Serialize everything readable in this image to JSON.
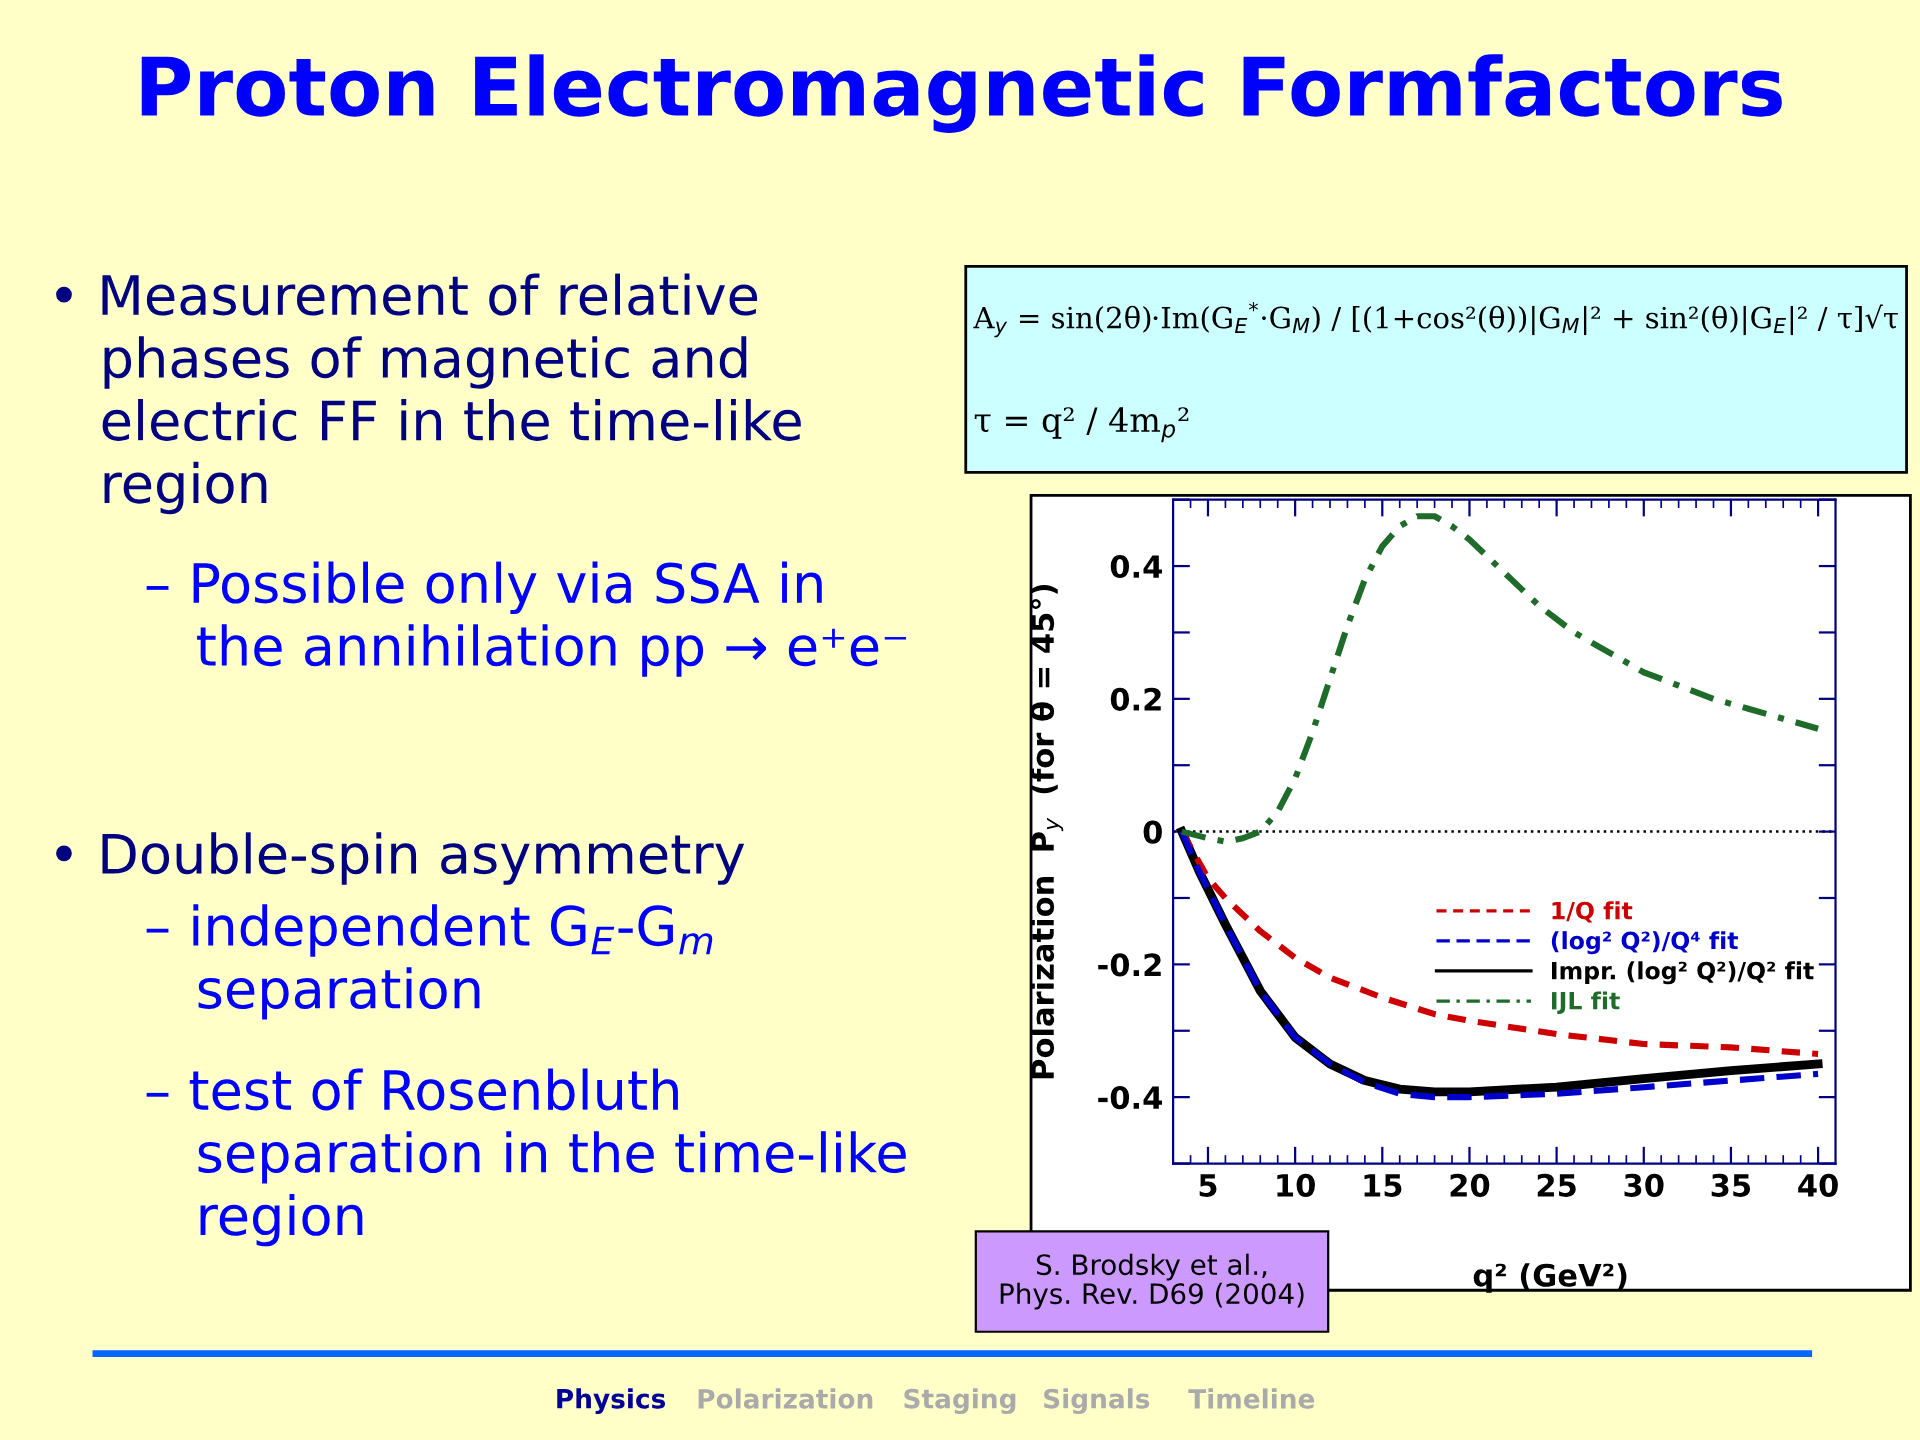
{
  "chart_data": {
    "type": "line",
    "title": "Proton Electromagnetic Formfactors",
    "xlabel": "q² (GeV²)",
    "ylabel": "Polarization  P$_{y}$  (for θ = 45°)",
    "xlim": [
      3,
      41
    ],
    "xticks": [
      5,
      10,
      15,
      20,
      25,
      30,
      35,
      40
    ],
    "ylim": [
      -0.5,
      0.5
    ],
    "yticks": [
      {
        "value": -0.5,
        "label": null
      },
      -0.4,
      {
        "value": -0.3,
        "label": null
      },
      -0.2,
      {
        "value": -0.1,
        "label": null
      },
      0,
      {
        "value": 0.1,
        "label": null
      },
      0.2,
      {
        "value": 0.3,
        "label": null
      },
      0.4,
      {
        "value": 0.5,
        "label": null
      }
    ],
    "grid": false,
    "legend": "right",
    "marker": "none",
    "ref_lines": [
      {
        "axis": "y",
        "value": 0,
        "label": null,
        "color": "#000000",
        "line_style": "dotted"
      }
    ],
    "series": [
      {
        "name": "1/Q fit",
        "color": "#cc0000",
        "line_style": "dashed",
        "x": [
          3.5,
          5,
          6,
          8,
          10,
          12,
          15,
          18,
          20,
          25,
          30,
          35,
          40
        ],
        "values": [
          0,
          -0.07,
          -0.1,
          -0.15,
          -0.19,
          -0.22,
          -0.25,
          -0.275,
          -0.285,
          -0.305,
          -0.32,
          -0.325,
          -0.335
        ]
      },
      {
        "name": "(log² Q²)/Q⁴ fit",
        "color": "#0000cc",
        "line_style": "dashed",
        "x": [
          3.5,
          4.5,
          6,
          8,
          10,
          12,
          14,
          16,
          18,
          20,
          25,
          30,
          35,
          40
        ],
        "values": [
          0,
          -0.06,
          -0.14,
          -0.24,
          -0.31,
          -0.35,
          -0.378,
          -0.395,
          -0.4,
          -0.4,
          -0.395,
          -0.385,
          -0.375,
          -0.365
        ]
      },
      {
        "name": "Impr. (log² Q²)/Q² fit",
        "color": "#000000",
        "line_style": "solid",
        "x": [
          3.5,
          4.5,
          6,
          8,
          10,
          12,
          14,
          16,
          18,
          20,
          25,
          30,
          35,
          40
        ],
        "values": [
          0,
          -0.06,
          -0.14,
          -0.24,
          -0.31,
          -0.35,
          -0.375,
          -0.388,
          -0.392,
          -0.392,
          -0.385,
          -0.372,
          -0.36,
          -0.35
        ]
      },
      {
        "name": "IJL fit",
        "color": "#1f6b2a",
        "line_style": "dashdot",
        "x": [
          3.5,
          5,
          6,
          7,
          8,
          9,
          10,
          11,
          12,
          13,
          14,
          15,
          16,
          17,
          18,
          19,
          20,
          22,
          24,
          26,
          28,
          30,
          32,
          34,
          36,
          38,
          40
        ],
        "values": [
          0,
          -0.01,
          -0.015,
          -0.01,
          0,
          0.03,
          0.08,
          0.15,
          0.23,
          0.31,
          0.38,
          0.43,
          0.46,
          0.475,
          0.475,
          0.46,
          0.44,
          0.39,
          0.34,
          0.3,
          0.27,
          0.24,
          0.22,
          0.2,
          0.185,
          0.17,
          0.155
        ]
      }
    ],
    "annotations": [
      "• Measurement of relative\n   phases of magnetic and\n   electric FF in the time-like\n   region",
      "– Possible only via SSA in\n   the annihilation pp → e⁺e⁻",
      "• Double-spin asymmetry",
      "– independent G$_{E}$-G$_{m}$\n   separation",
      "– test of Rosenbluth\n   separation in the time-like\n   region",
      "A$_{y}$ = sin(2θ)·Im(G$_{E}$$^{*}$·G$_{M}$) / [(1+cos²(θ))|G$_{M}$|² + sin²(θ)|G$_{E}$|² / τ]√τ",
      "τ = q² / 4m$_{p}$²",
      "S. Brodsky et al.,\nPhys. Rev. D69 (2004)",
      "Physics",
      "Polarization",
      "Staging",
      "Signals",
      "Timeline"
    ]
  }
}
